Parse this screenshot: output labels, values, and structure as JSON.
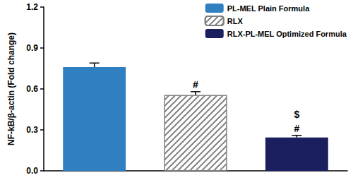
{
  "chart_data": {
    "type": "bar",
    "categories": [
      null,
      null,
      null
    ],
    "ylabel": "NF-kB/β-actin (Fold change)",
    "ylim": [
      0,
      1.2
    ],
    "yticks": [
      {
        "value": 0,
        "label": "0.0"
      },
      0.3,
      0.6,
      0.9,
      1.2
    ],
    "grid": false,
    "legend": "upper right",
    "tick_labels": "y",
    "series": [
      {
        "name": "PL-MEL Plain Formula",
        "color": "#2f7fc1",
        "values": [
          0.76,
          null,
          null
        ],
        "errors": [
          0.03,
          null,
          null
        ]
      },
      {
        "name": "RLX",
        "color": "#808080",
        "marker": "hatch",
        "values": [
          null,
          0.555,
          null
        ],
        "errors": [
          null,
          0.025,
          null
        ],
        "annotations": [
          null,
          [
            "#"
          ],
          null
        ]
      },
      {
        "name": "RLX-PL-MEL Optimized Formula",
        "color": "#1b1f5e",
        "values": [
          null,
          null,
          0.245
        ],
        "errors": [
          null,
          null,
          0.015
        ],
        "annotations": [
          null,
          null,
          [
            "$",
            "#"
          ]
        ]
      }
    ]
  }
}
